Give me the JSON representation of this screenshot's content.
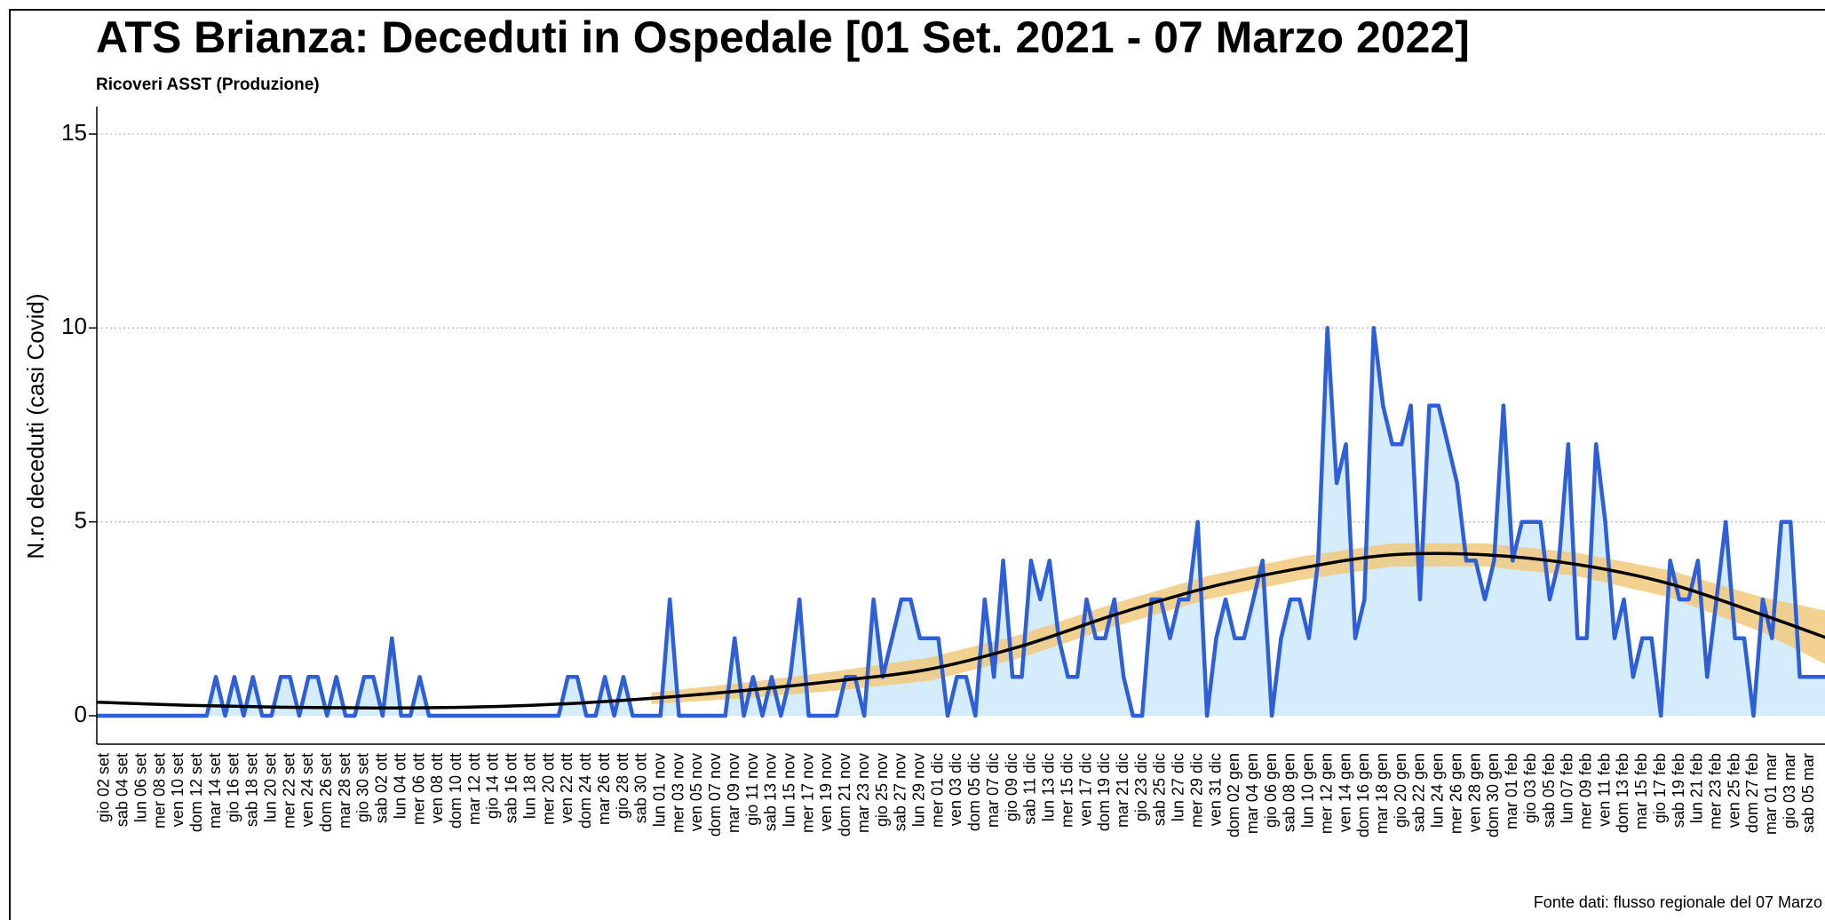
{
  "chart_data": {
    "type": "line",
    "title": "ATS Brianza: Deceduti in Ospedale [01 Set. 2021 - 07 Marzo 2022]",
    "subtitle": "Ricoveri ASST (Produzione)",
    "y_label": "N.ro deceduti (casi Covid)",
    "source": "Fonte dati: flusso regionale del 07 Marzo",
    "categories": [
      null,
      "gio 02 set",
      null,
      "sab 04 set",
      null,
      "lun 06 set",
      null,
      "mer 08 set",
      null,
      "ven 10 set",
      null,
      "dom 12 set",
      null,
      "mar 14 set",
      null,
      "gio 16 set",
      null,
      "sab 18 set",
      null,
      "lun 20 set",
      null,
      "mer 22 set",
      null,
      "ven 24 set",
      null,
      "dom 26 set",
      null,
      "mar 28 set",
      null,
      "gio 30 set",
      null,
      "sab 02 ott",
      null,
      "lun 04 ott",
      null,
      "mer 06 ott",
      null,
      "ven 08 ott",
      null,
      "dom 10 ott",
      null,
      "mar 12 ott",
      null,
      "gio 14 ott",
      null,
      "sab 16 ott",
      null,
      "lun 18 ott",
      null,
      "mer 20 ott",
      null,
      "ven 22 ott",
      null,
      "dom 24 ott",
      null,
      "mar 26 ott",
      null,
      "gio 28 ott",
      null,
      "sab 30 ott",
      null,
      "lun 01 nov",
      null,
      "mer 03 nov",
      null,
      "ven 05 nov",
      null,
      "dom 07 nov",
      null,
      "mar 09 nov",
      null,
      "gio 11 nov",
      null,
      "sab 13 nov",
      null,
      "lun 15 nov",
      null,
      "mer 17 nov",
      null,
      "ven 19 nov",
      null,
      "dom 21 nov",
      null,
      "mar 23 nov",
      null,
      "gio 25 nov",
      null,
      "sab 27 nov",
      null,
      "lun 29 nov",
      null,
      "mer 01 dic",
      null,
      "ven 03 dic",
      null,
      "dom 05 dic",
      null,
      "mar 07 dic",
      null,
      "gio 09 dic",
      null,
      "sab 11 dic",
      null,
      "lun 13 dic",
      null,
      "mer 15 dic",
      null,
      "ven 17 dic",
      null,
      "dom 19 dic",
      null,
      "mar 21 dic",
      null,
      "gio 23 dic",
      null,
      "sab 25 dic",
      null,
      "lun 27 dic",
      null,
      "mer 29 dic",
      null,
      "ven 31 dic",
      null,
      "dom 02 gen",
      null,
      "mar 04 gen",
      null,
      "gio 06 gen",
      null,
      "sab 08 gen",
      null,
      "lun 10 gen",
      null,
      "mer 12 gen",
      null,
      "ven 14 gen",
      null,
      "dom 16 gen",
      null,
      "mar 18 gen",
      null,
      "gio 20 gen",
      null,
      "sab 22 gen",
      null,
      "lun 24 gen",
      null,
      "mer 26 gen",
      null,
      "ven 28 gen",
      null,
      "dom 30 gen",
      null,
      "mar 01 feb",
      null,
      "gio 03 feb",
      null,
      "sab 05 feb",
      null,
      "lun 07 feb",
      null,
      "mer 09 feb",
      null,
      "ven 11 feb",
      null,
      "dom 13 feb",
      null,
      "mar 15 feb",
      null,
      "gio 17 feb",
      null,
      "sab 19 feb",
      null,
      "lun 21 feb",
      null,
      "mer 23 feb",
      null,
      "ven 25 feb",
      null,
      "dom 27 feb",
      null,
      "mar 01 mar",
      null,
      "gio 03 mar",
      null,
      "sab 05 mar",
      null,
      null
    ],
    "series": [
      {
        "color": "#2f5fd6",
        "fill": "#d4ecfb",
        "values": [
          0,
          0,
          0,
          0,
          0,
          0,
          0,
          0,
          0,
          0,
          0,
          0,
          0,
          1,
          0,
          1,
          0,
          1,
          0,
          0,
          1,
          1,
          0,
          1,
          1,
          0,
          1,
          0,
          0,
          1,
          1,
          0,
          2,
          0,
          0,
          1,
          0,
          0,
          0,
          0,
          0,
          0,
          0,
          0,
          0,
          0,
          0,
          0,
          0,
          0,
          0,
          1,
          1,
          0,
          0,
          1,
          0,
          1,
          0,
          0,
          0,
          0,
          3,
          0,
          0,
          0,
          0,
          0,
          0,
          2,
          0,
          1,
          0,
          1,
          0,
          1,
          3,
          0,
          0,
          0,
          0,
          1,
          1,
          0,
          3,
          1,
          2,
          3,
          3,
          2,
          2,
          2,
          0,
          1,
          1,
          0,
          3,
          1,
          4,
          1,
          1,
          4,
          3,
          4,
          2,
          1,
          1,
          3,
          2,
          2,
          3,
          1,
          0,
          0,
          3,
          3,
          2,
          3,
          3,
          5,
          0,
          2,
          3,
          2,
          2,
          3,
          4,
          0,
          2,
          3,
          3,
          2,
          4,
          10,
          6,
          7,
          2,
          3,
          10,
          8,
          7,
          7,
          8,
          3,
          8,
          8,
          7,
          6,
          4,
          4,
          3,
          4,
          8,
          4,
          5,
          5,
          5,
          3,
          4,
          7,
          2,
          2,
          7,
          5,
          2,
          3,
          1,
          2,
          2,
          0,
          4,
          3,
          3,
          4,
          1,
          3,
          5,
          2,
          2,
          0,
          3,
          2,
          5,
          5,
          1,
          1,
          1,
          1
        ]
      }
    ],
    "trend": {
      "color": "#000000",
      "band_color": "#f1c97e",
      "x": [
        0,
        10,
        20,
        30,
        40,
        50,
        60,
        70,
        80,
        90,
        100,
        110,
        120,
        130,
        140,
        150,
        160,
        170,
        180,
        187
      ],
      "values": [
        0.35,
        0.27,
        0.22,
        0.2,
        0.22,
        0.3,
        0.45,
        0.65,
        0.9,
        1.2,
        1.8,
        2.6,
        3.3,
        3.8,
        4.15,
        4.15,
        3.9,
        3.4,
        2.6,
        2.0
      ],
      "band_low": [
        null,
        null,
        null,
        null,
        null,
        null,
        0.3,
        0.45,
        0.65,
        0.9,
        1.5,
        2.3,
        3.0,
        3.5,
        3.85,
        3.85,
        3.6,
        3.05,
        2.15,
        1.3
      ],
      "band_high": [
        null,
        null,
        null,
        null,
        null,
        null,
        0.6,
        0.85,
        1.15,
        1.5,
        2.1,
        2.9,
        3.6,
        4.1,
        4.45,
        4.45,
        4.2,
        3.75,
        3.05,
        2.7
      ]
    },
    "ylim": [
      0,
      15.5
    ],
    "yticks": [
      0,
      5,
      10,
      15
    ],
    "grid": true
  }
}
